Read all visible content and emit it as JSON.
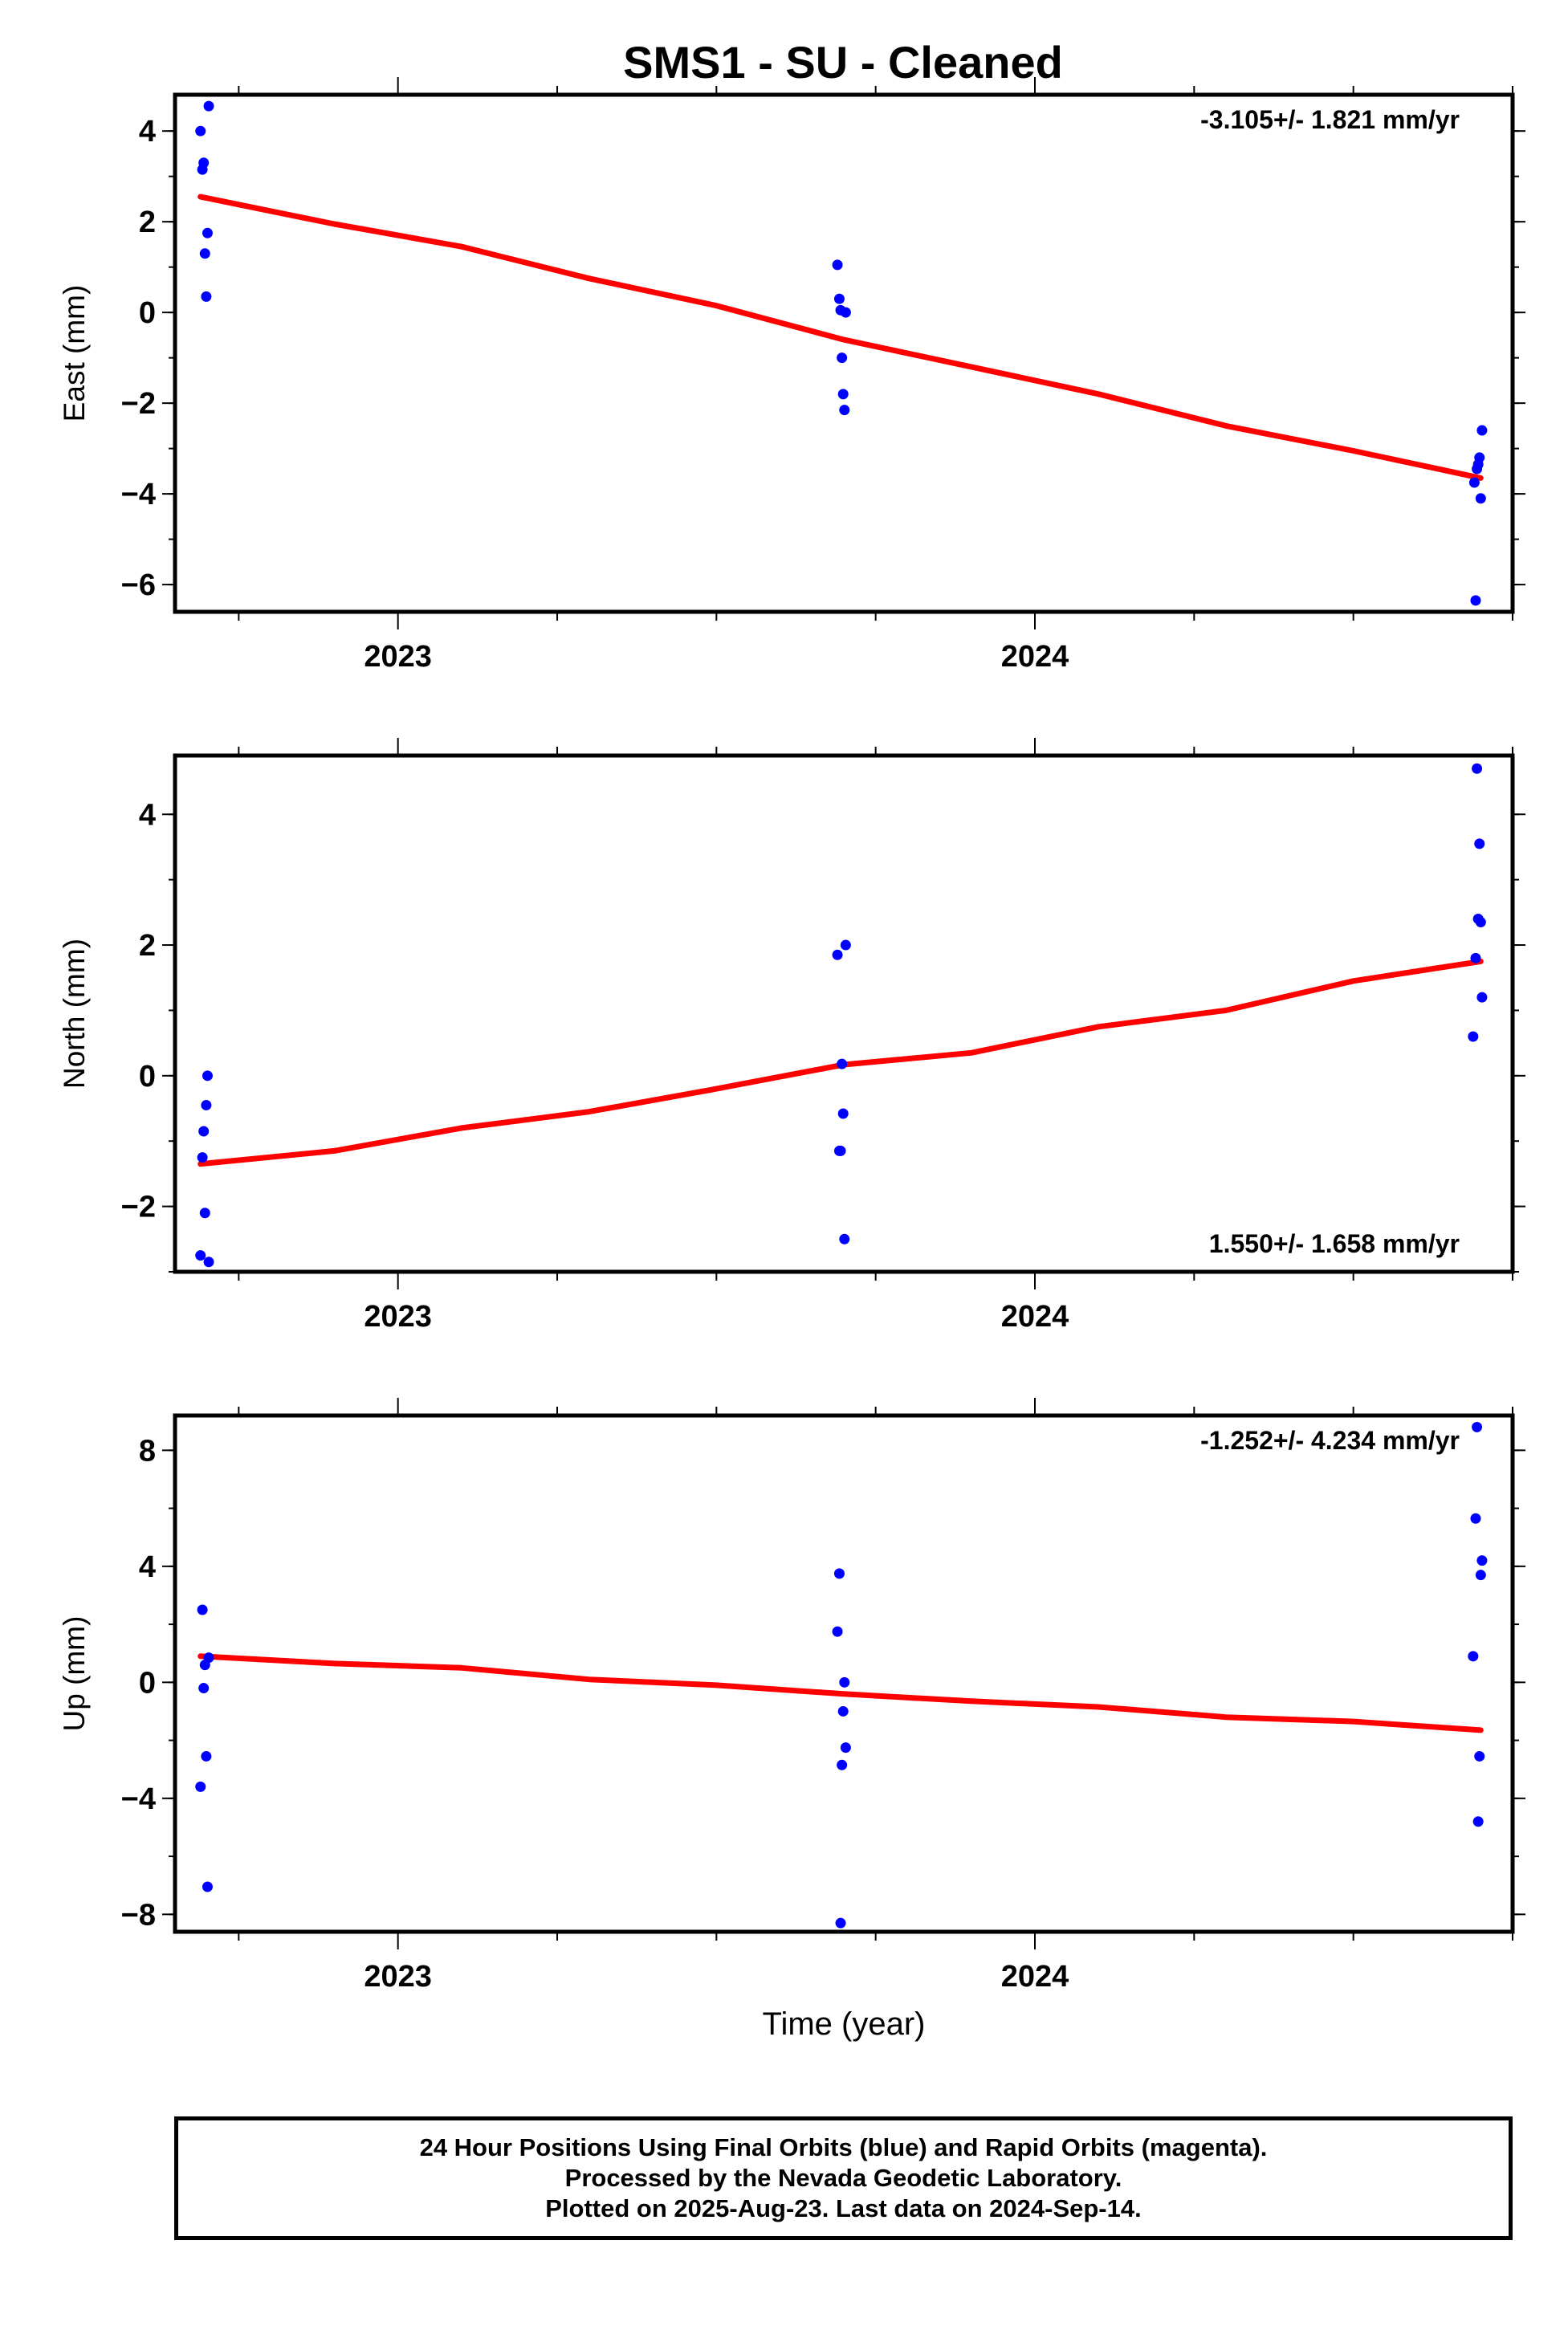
{
  "title": "SMS1  - SU - Cleaned",
  "colors": {
    "data_points": "#0000ff",
    "trend_line": "#ff0000",
    "frame": "#000000"
  },
  "chart_data": [
    {
      "type": "scatter",
      "ylabel": "East (mm)",
      "rate_label": "-3.105+/- 1.821 mm/yr",
      "rate_label_position": "top-right",
      "xlim": [
        2022.65,
        2024.75
      ],
      "ylim": [
        -6.6,
        4.8
      ],
      "yticks": [
        4,
        2,
        0,
        -2,
        -4,
        -6
      ],
      "yticklabels": [
        "4",
        "2",
        "0",
        "−2",
        "−4",
        "−6"
      ],
      "xticks": [
        2023,
        2024
      ],
      "xticklabels": [
        "2023",
        "2024"
      ],
      "points": [
        {
          "x": 2022.69,
          "y": 4.0
        },
        {
          "x": 2022.693,
          "y": 3.15
        },
        {
          "x": 2022.695,
          "y": 3.3
        },
        {
          "x": 2022.697,
          "y": 1.3
        },
        {
          "x": 2022.699,
          "y": 0.35
        },
        {
          "x": 2022.701,
          "y": 1.75
        },
        {
          "x": 2022.703,
          "y": 4.55
        },
        {
          "x": 2023.69,
          "y": 1.05
        },
        {
          "x": 2023.693,
          "y": 0.3
        },
        {
          "x": 2023.695,
          "y": 0.05
        },
        {
          "x": 2023.697,
          "y": -1.0
        },
        {
          "x": 2023.699,
          "y": -1.8
        },
        {
          "x": 2023.701,
          "y": -2.15
        },
        {
          "x": 2023.703,
          "y": 0.0
        },
        {
          "x": 2024.69,
          "y": -3.75
        },
        {
          "x": 2024.692,
          "y": -6.35
        },
        {
          "x": 2024.694,
          "y": -3.45
        },
        {
          "x": 2024.696,
          "y": -3.35
        },
        {
          "x": 2024.698,
          "y": -3.2
        },
        {
          "x": 2024.7,
          "y": -4.1
        },
        {
          "x": 2024.702,
          "y": -2.6
        }
      ],
      "trend": [
        {
          "x": 2022.69,
          "y": 2.55
        },
        {
          "x": 2022.9,
          "y": 1.95
        },
        {
          "x": 2023.1,
          "y": 1.45
        },
        {
          "x": 2023.3,
          "y": 0.75
        },
        {
          "x": 2023.5,
          "y": 0.15
        },
        {
          "x": 2023.7,
          "y": -0.6
        },
        {
          "x": 2023.9,
          "y": -1.2
        },
        {
          "x": 2024.1,
          "y": -1.8
        },
        {
          "x": 2024.3,
          "y": -2.5
        },
        {
          "x": 2024.5,
          "y": -3.05
        },
        {
          "x": 2024.7,
          "y": -3.65
        }
      ]
    },
    {
      "type": "scatter",
      "ylabel": "North (mm)",
      "rate_label": "1.550+/- 1.658 mm/yr",
      "rate_label_position": "bottom-right",
      "xlim": [
        2022.65,
        2024.75
      ],
      "ylim": [
        -3.0,
        4.9
      ],
      "yticks": [
        4,
        2,
        0,
        -2
      ],
      "yticklabels": [
        "4",
        "2",
        "0",
        "−2"
      ],
      "xticks": [
        2023,
        2024
      ],
      "xticklabels": [
        "2023",
        "2024"
      ],
      "points": [
        {
          "x": 2022.69,
          "y": -2.75
        },
        {
          "x": 2022.693,
          "y": -1.25
        },
        {
          "x": 2022.695,
          "y": -0.85
        },
        {
          "x": 2022.697,
          "y": -2.1
        },
        {
          "x": 2022.699,
          "y": -0.45
        },
        {
          "x": 2022.701,
          "y": 0.0
        },
        {
          "x": 2022.703,
          "y": -2.85
        },
        {
          "x": 2023.69,
          "y": 1.85
        },
        {
          "x": 2023.693,
          "y": -1.15
        },
        {
          "x": 2023.695,
          "y": -1.15
        },
        {
          "x": 2023.697,
          "y": 0.18
        },
        {
          "x": 2023.699,
          "y": -0.58
        },
        {
          "x": 2023.701,
          "y": -2.5
        },
        {
          "x": 2023.703,
          "y": 2.0
        },
        {
          "x": 2024.688,
          "y": 0.6
        },
        {
          "x": 2024.692,
          "y": 1.8
        },
        {
          "x": 2024.694,
          "y": 4.7
        },
        {
          "x": 2024.696,
          "y": 2.4
        },
        {
          "x": 2024.698,
          "y": 3.55
        },
        {
          "x": 2024.7,
          "y": 2.35
        },
        {
          "x": 2024.702,
          "y": 1.2
        }
      ],
      "trend": [
        {
          "x": 2022.69,
          "y": -1.35
        },
        {
          "x": 2022.9,
          "y": -1.15
        },
        {
          "x": 2023.1,
          "y": -0.8
        },
        {
          "x": 2023.3,
          "y": -0.55
        },
        {
          "x": 2023.5,
          "y": -0.2
        },
        {
          "x": 2023.7,
          "y": 0.17
        },
        {
          "x": 2023.9,
          "y": 0.35
        },
        {
          "x": 2024.1,
          "y": 0.75
        },
        {
          "x": 2024.3,
          "y": 1.0
        },
        {
          "x": 2024.5,
          "y": 1.45
        },
        {
          "x": 2024.7,
          "y": 1.75
        }
      ]
    },
    {
      "type": "scatter",
      "ylabel": "Up (mm)",
      "rate_label": "-1.252+/- 4.234 mm/yr",
      "rate_label_position": "top-right",
      "xlim": [
        2022.65,
        2024.75
      ],
      "ylim": [
        -8.6,
        9.2
      ],
      "yticks": [
        8,
        4,
        0,
        -4,
        -8
      ],
      "yticklabels": [
        "8",
        "4",
        "0",
        "−4",
        "−8"
      ],
      "xticks": [
        2023,
        2024
      ],
      "xticklabels": [
        "2023",
        "2024"
      ],
      "xlabel": "Time (year)",
      "points": [
        {
          "x": 2022.69,
          "y": -3.6
        },
        {
          "x": 2022.693,
          "y": 2.5
        },
        {
          "x": 2022.695,
          "y": -0.2
        },
        {
          "x": 2022.697,
          "y": 0.6
        },
        {
          "x": 2022.699,
          "y": -2.55
        },
        {
          "x": 2022.701,
          "y": -7.05
        },
        {
          "x": 2022.703,
          "y": 0.85
        },
        {
          "x": 2023.69,
          "y": 1.75
        },
        {
          "x": 2023.693,
          "y": 3.75
        },
        {
          "x": 2023.695,
          "y": -8.3
        },
        {
          "x": 2023.697,
          "y": -2.85
        },
        {
          "x": 2023.699,
          "y": -1.0
        },
        {
          "x": 2023.701,
          "y": 0.0
        },
        {
          "x": 2023.703,
          "y": -2.25
        },
        {
          "x": 2024.688,
          "y": 0.9
        },
        {
          "x": 2024.692,
          "y": 5.65
        },
        {
          "x": 2024.694,
          "y": 8.8
        },
        {
          "x": 2024.696,
          "y": -4.8
        },
        {
          "x": 2024.698,
          "y": -2.55
        },
        {
          "x": 2024.7,
          "y": 3.7
        },
        {
          "x": 2024.702,
          "y": 4.2
        }
      ],
      "trend": [
        {
          "x": 2022.69,
          "y": 0.9
        },
        {
          "x": 2022.9,
          "y": 0.65
        },
        {
          "x": 2023.1,
          "y": 0.5
        },
        {
          "x": 2023.3,
          "y": 0.1
        },
        {
          "x": 2023.5,
          "y": -0.1
        },
        {
          "x": 2023.7,
          "y": -0.4
        },
        {
          "x": 2023.9,
          "y": -0.65
        },
        {
          "x": 2024.1,
          "y": -0.85
        },
        {
          "x": 2024.3,
          "y": -1.2
        },
        {
          "x": 2024.5,
          "y": -1.35
        },
        {
          "x": 2024.7,
          "y": -1.65
        }
      ]
    }
  ],
  "footer": {
    "line1": "24 Hour Positions Using Final Orbits (blue) and Rapid Orbits (magenta).",
    "line2": "Processed by the Nevada Geodetic Laboratory.",
    "line3": "Plotted on 2025-Aug-23. Last data on 2024-Sep-14."
  }
}
